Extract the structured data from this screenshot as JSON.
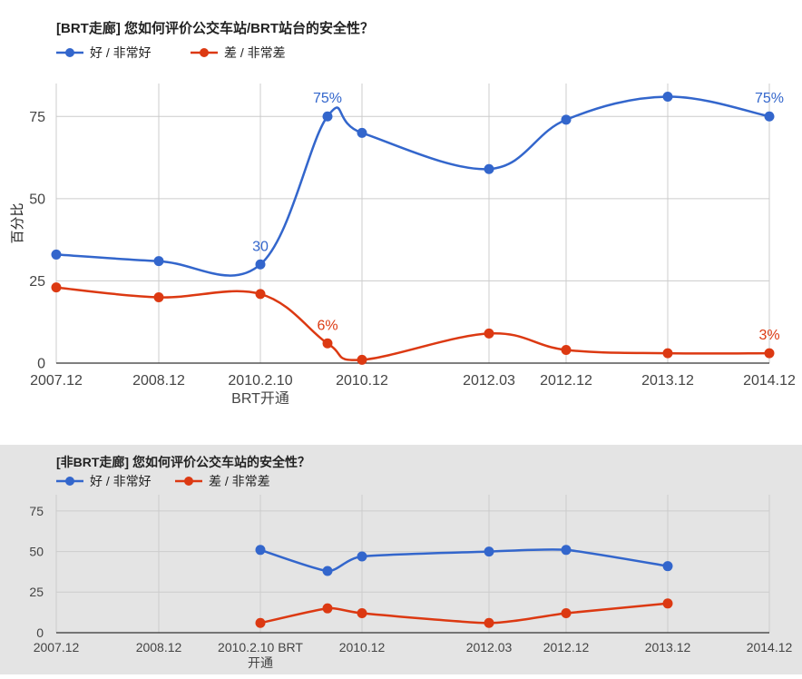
{
  "colors": {
    "good": "#3366cc",
    "bad": "#dc3912"
  },
  "chart_data": [
    {
      "type": "line",
      "title": "[BRT走廊] 您如何评价公交车站/BRT站台的安全性？",
      "xlabel": "",
      "ylabel": "百分比",
      "ylim": [
        0,
        85
      ],
      "yticks": [
        0,
        25,
        50,
        75
      ],
      "x": [
        "2007.12",
        "2008.12",
        "2010.2.10 BRT开通",
        "2010.8",
        "2010.12",
        "2012.03",
        "2012.12",
        "2013.12",
        "2014.12"
      ],
      "x_labels": [
        {
          "x": "2007.12",
          "lines": [
            "2007.12"
          ]
        },
        {
          "x": "2008.12",
          "lines": [
            "2008.12"
          ]
        },
        {
          "x": "2010.2.10 BRT开通",
          "lines": [
            "2010.2.10",
            "BRT开通"
          ]
        },
        {
          "x": "2010.12",
          "lines": [
            "2010.12"
          ]
        },
        {
          "x": "2012.03",
          "lines": [
            "2012.03"
          ]
        },
        {
          "x": "2012.12",
          "lines": [
            "2012.12"
          ]
        },
        {
          "x": "2013.12",
          "lines": [
            "2013.12"
          ]
        },
        {
          "x": "2014.12",
          "lines": [
            "2014.12"
          ]
        }
      ],
      "grid": true,
      "legend_position": "top-left",
      "series": [
        {
          "name": "好 / 非常好",
          "color": "#3366cc",
          "values": [
            33,
            31,
            30,
            75,
            70,
            59,
            74,
            81,
            75
          ],
          "annotations": [
            {
              "x": "2010.2.10 BRT开通",
              "text": "30"
            },
            {
              "x": "2010.8",
              "text": "75%"
            },
            {
              "x": "2014.12",
              "text": "75%"
            }
          ]
        },
        {
          "name": "差 / 非常差",
          "color": "#dc3912",
          "values": [
            23,
            20,
            21,
            6,
            1,
            9,
            4,
            3,
            3
          ],
          "annotations": [
            {
              "x": "2010.8",
              "text": "6%"
            },
            {
              "x": "2014.12",
              "text": "3%"
            }
          ]
        }
      ]
    },
    {
      "type": "line",
      "title": "[非BRT走廊] 您如何评价公交车站的安全性？",
      "xlabel": "",
      "ylabel": "",
      "ylim": [
        0,
        85
      ],
      "yticks": [
        0,
        25,
        50,
        75
      ],
      "x": [
        "2007.12",
        "2008.12",
        "2010.2.10 BRT开通",
        "2010.8",
        "2010.12",
        "2012.03",
        "2012.12",
        "2013.12",
        "2014.12"
      ],
      "x_labels": [
        {
          "x": "2007.12",
          "lines": [
            "2007.12"
          ]
        },
        {
          "x": "2008.12",
          "lines": [
            "2008.12"
          ]
        },
        {
          "x": "2010.2.10 BRT开通",
          "lines": [
            "2010.2.10 BRT",
            "开通"
          ]
        },
        {
          "x": "2010.12",
          "lines": [
            "2010.12"
          ]
        },
        {
          "x": "2012.03",
          "lines": [
            "2012.03"
          ]
        },
        {
          "x": "2012.12",
          "lines": [
            "2012.12"
          ]
        },
        {
          "x": "2013.12",
          "lines": [
            "2013.12"
          ]
        },
        {
          "x": "2014.12",
          "lines": [
            "2014.12"
          ]
        }
      ],
      "grid": true,
      "legend_position": "top-left",
      "series": [
        {
          "name": "好 / 非常好",
          "color": "#3366cc",
          "values": [
            null,
            null,
            51,
            38,
            47,
            50,
            51,
            41,
            null
          ],
          "annotations": []
        },
        {
          "name": "差 / 非常差",
          "color": "#dc3912",
          "values": [
            null,
            null,
            6,
            15,
            12,
            6,
            12,
            18,
            null
          ],
          "annotations": []
        }
      ]
    }
  ]
}
